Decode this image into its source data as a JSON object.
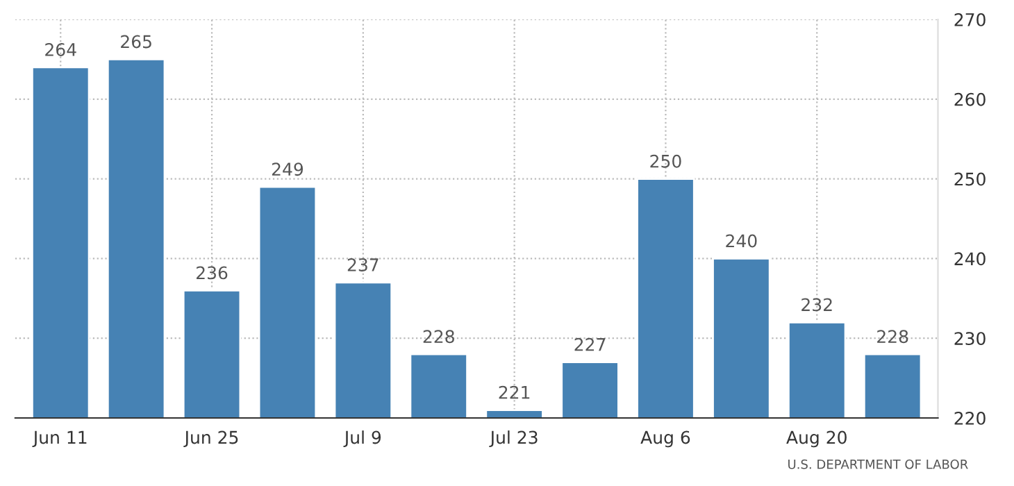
{
  "chart_data": {
    "type": "bar",
    "categories": [
      "Jun 11",
      null,
      "Jun 25",
      null,
      "Jul 9",
      null,
      "Jul 23",
      null,
      "Aug 6",
      null,
      "Aug 20",
      null
    ],
    "values": [
      264,
      265,
      236,
      249,
      237,
      228,
      221,
      227,
      250,
      240,
      232,
      228
    ],
    "color": "#4682b4",
    "ylim": [
      220,
      270
    ],
    "yticks": [
      220,
      230,
      240,
      250,
      260,
      270
    ],
    "grid": true,
    "data_labels": true,
    "annotations": [
      "U.S. DEPARTMENT OF LABOR"
    ]
  }
}
